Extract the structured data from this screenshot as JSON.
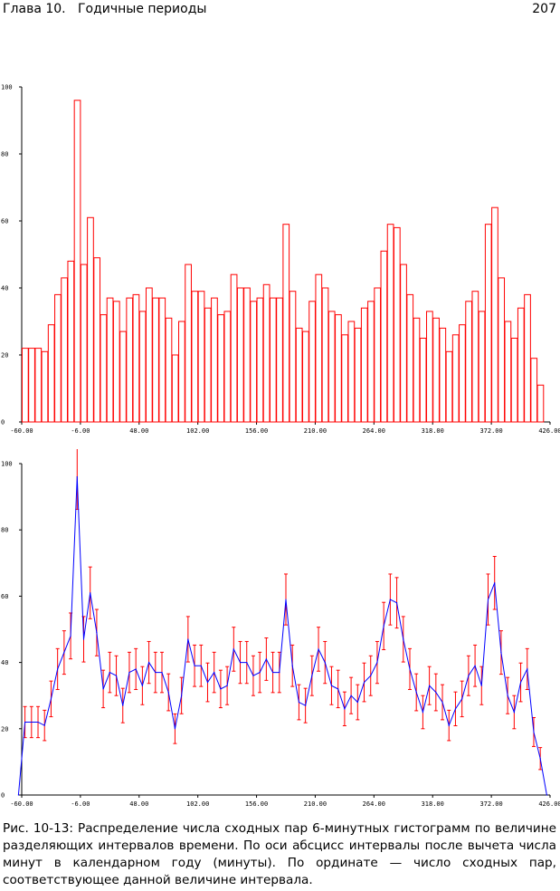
{
  "page": {
    "header_left": "Глава 10.   Годичные периоды",
    "page_number": "207",
    "caption": "Рис. 10-13: Распределение числа сходных пар 6-минутных гистограмм по величине разделяющих интервалов времени. По оси абсцисс интервалы после вычета числа минут в календарном году (минуты). По ординате — число сходных пар, соответствующее данной величине интервала."
  },
  "colors": {
    "histogram": "#ff0000",
    "line": "#0000ff",
    "error_bars": "#ff0000",
    "axis": "#000000"
  },
  "chart_data": [
    {
      "type": "bar",
      "x_start": -60,
      "bin_width": 6,
      "xlim": [
        -60,
        426
      ],
      "ylim": [
        0,
        100
      ],
      "x_ticks": [
        "-60.00",
        "-6.00",
        "48.00",
        "102.00",
        "156.00",
        "210.00",
        "264.00",
        "318.00",
        "372.00",
        "426.00"
      ],
      "x_tick_values": [
        -60,
        -6,
        48,
        102,
        156,
        210,
        264,
        318,
        372,
        426
      ],
      "y_ticks": [
        "0",
        "20",
        "40",
        "60",
        "80",
        "100"
      ],
      "y_tick_values": [
        0,
        20,
        40,
        60,
        80,
        100
      ],
      "values": [
        22,
        22,
        22,
        21,
        29,
        38,
        43,
        48,
        96,
        47,
        61,
        49,
        32,
        37,
        36,
        27,
        37,
        38,
        33,
        40,
        37,
        37,
        31,
        20,
        30,
        47,
        39,
        39,
        34,
        37,
        32,
        33,
        44,
        40,
        40,
        36,
        37,
        41,
        37,
        37,
        59,
        39,
        28,
        27,
        36,
        44,
        40,
        33,
        32,
        26,
        30,
        28,
        34,
        36,
        40,
        51,
        59,
        58,
        47,
        38,
        31,
        25,
        33,
        31,
        28,
        21,
        26,
        29,
        36,
        39,
        33,
        59,
        64,
        43,
        30,
        25,
        34,
        38,
        19,
        11
      ]
    },
    {
      "type": "line",
      "xlim": [
        -60,
        426
      ],
      "ylim": [
        0,
        100
      ],
      "x_ticks": [
        "-60.00",
        "-6.00",
        "48.00",
        "102.00",
        "156.00",
        "210.00",
        "264.00",
        "318.00",
        "372.00",
        "426.00"
      ],
      "x_tick_values": [
        -60,
        -6,
        48,
        102,
        156,
        210,
        264,
        318,
        372,
        426
      ],
      "y_ticks": [
        "0",
        "20",
        "40",
        "60",
        "80",
        "100"
      ],
      "y_tick_values": [
        0,
        20,
        40,
        60,
        80,
        100
      ],
      "x": [
        -63,
        -57,
        -51,
        -45,
        -39,
        -33,
        -27,
        -21,
        -15,
        -9,
        -3,
        3,
        9,
        15,
        21,
        27,
        33,
        39,
        45,
        51,
        57,
        63,
        69,
        75,
        81,
        87,
        93,
        99,
        105,
        111,
        117,
        123,
        129,
        135,
        141,
        147,
        153,
        159,
        165,
        171,
        177,
        183,
        189,
        195,
        201,
        207,
        213,
        219,
        225,
        231,
        237,
        243,
        249,
        255,
        261,
        267,
        273,
        279,
        285,
        291,
        297,
        303,
        309,
        315,
        321,
        327,
        333,
        339,
        345,
        351,
        357,
        363,
        369,
        375,
        381,
        387,
        393,
        399,
        405,
        411,
        417,
        423
      ],
      "values": [
        0,
        22,
        22,
        22,
        21,
        29,
        38,
        43,
        48,
        96,
        47,
        61,
        49,
        32,
        37,
        36,
        27,
        37,
        38,
        33,
        40,
        37,
        37,
        31,
        20,
        30,
        47,
        39,
        39,
        34,
        37,
        32,
        33,
        44,
        40,
        40,
        36,
        37,
        41,
        37,
        37,
        59,
        39,
        28,
        27,
        36,
        44,
        40,
        33,
        32,
        26,
        30,
        28,
        34,
        36,
        40,
        51,
        59,
        58,
        47,
        38,
        31,
        25,
        33,
        31,
        28,
        21,
        26,
        29,
        36,
        39,
        33,
        59,
        64,
        43,
        30,
        25,
        34,
        38,
        19,
        11,
        0
      ],
      "error_bars": "yes"
    }
  ]
}
